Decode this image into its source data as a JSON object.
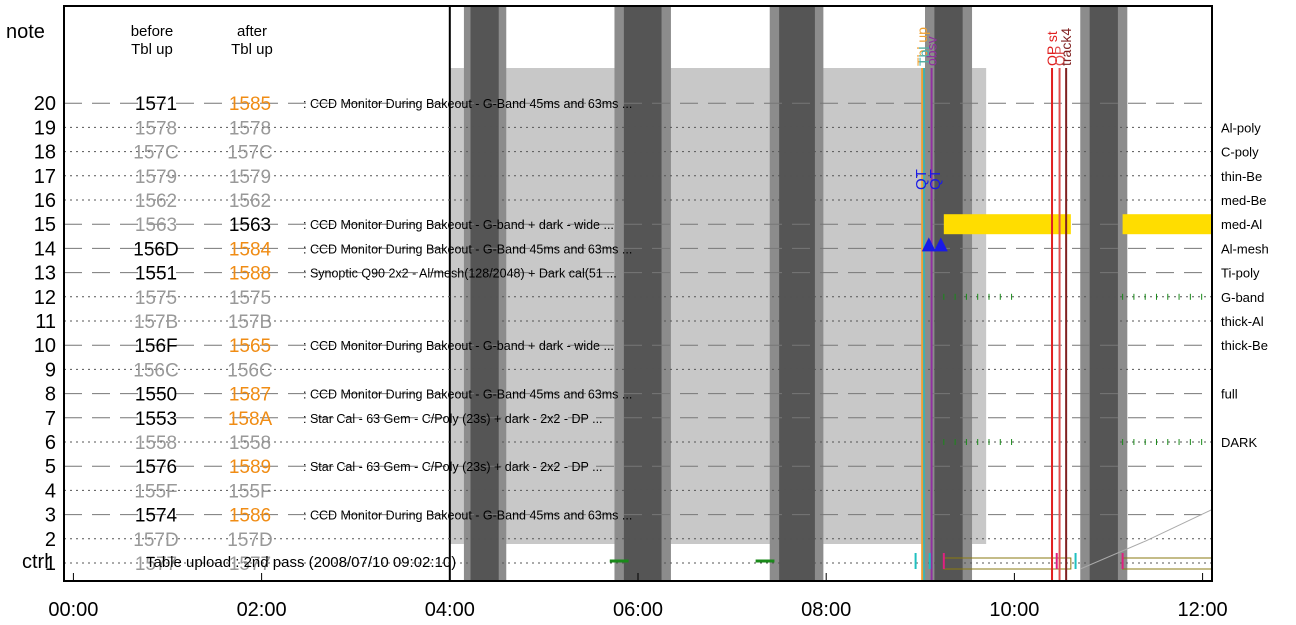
{
  "chart_data": {
    "type": "timeline",
    "x_ticks": [
      "00:00",
      "02:00",
      "04:00",
      "06:00",
      "08:00",
      "10:00",
      "12:00"
    ],
    "x_range_hours": [
      -0.1,
      12.1
    ],
    "y_labels": {
      "top": "note",
      "bottom": "ctrl",
      "rows": [
        "1",
        "2",
        "3",
        "4",
        "5",
        "6",
        "7",
        "8",
        "9",
        "10",
        "11",
        "12",
        "13",
        "14",
        "15",
        "16",
        "17",
        "18",
        "19",
        "20"
      ]
    },
    "column_headers": {
      "before_line1": "before",
      "before_line2": "Tbl up",
      "after_line1": "after",
      "after_line2": "Tbl up"
    },
    "rows": [
      {
        "row": 20,
        "before": "1571",
        "after": "1585",
        "active": true,
        "desc": ": CCD Monitor During Bakeout - G-Band 45ms and 63ms  ..."
      },
      {
        "row": 19,
        "before": "1578",
        "after": "1578",
        "active": false,
        "desc": ""
      },
      {
        "row": 18,
        "before": "157C",
        "after": "157C",
        "active": false,
        "desc": ""
      },
      {
        "row": 17,
        "before": "1579",
        "after": "1579",
        "active": false,
        "desc": ""
      },
      {
        "row": 16,
        "before": "1562",
        "after": "1562",
        "active": false,
        "desc": ""
      },
      {
        "row": 15,
        "before": "1563",
        "after": "1563",
        "active": true,
        "before_grey": true,
        "after_black": true,
        "desc": ": CCD Monitor During Bakeout - G-band + dark - wide  ..."
      },
      {
        "row": 14,
        "before": "156D",
        "after": "1584",
        "active": true,
        "desc": ": CCD Monitor During Bakeout - G-Band 45ms and 63ms  ..."
      },
      {
        "row": 13,
        "before": "1551",
        "after": "1588",
        "active": true,
        "desc": ": Synoptic Q90 2x2 - Al/mesh(128/2048) + Dark cal(51 ..."
      },
      {
        "row": 12,
        "before": "1575",
        "after": "1575",
        "active": false,
        "desc": ""
      },
      {
        "row": 11,
        "before": "157B",
        "after": "157B",
        "active": false,
        "desc": ""
      },
      {
        "row": 10,
        "before": "156F",
        "after": "1565",
        "active": true,
        "desc": ": CCD Monitor During Bakeout - G-band + dark - wide  ..."
      },
      {
        "row": 9,
        "before": "156C",
        "after": "156C",
        "active": false,
        "desc": ""
      },
      {
        "row": 8,
        "before": "1550",
        "after": "1587",
        "active": true,
        "desc": ": CCD Monitor During Bakeout - G-Band 45ms and 63ms  ..."
      },
      {
        "row": 7,
        "before": "1553",
        "after": "158A",
        "active": true,
        "desc": ": Star Cal - 63 Gem - C/Poly (23s) + dark - 2x2 - DP ..."
      },
      {
        "row": 6,
        "before": "1558",
        "after": "1558",
        "active": false,
        "desc": ""
      },
      {
        "row": 5,
        "before": "1576",
        "after": "1589",
        "active": true,
        "desc": ": Star Cal - 63 Gem - C/Poly (23s) + dark - 2x2 - DP ..."
      },
      {
        "row": 4,
        "before": "155F",
        "after": "155F",
        "active": false,
        "desc": ""
      },
      {
        "row": 3,
        "before": "1574",
        "after": "1586",
        "active": true,
        "desc": ": CCD Monitor During Bakeout - G-Band 45ms and 63ms  ..."
      },
      {
        "row": 2,
        "before": "157D",
        "after": "157D",
        "active": false,
        "desc": ""
      },
      {
        "row": 1,
        "before": "1577",
        "after": "1577",
        "active": false,
        "desc": ""
      }
    ],
    "right_labels": [
      {
        "row": 19,
        "text": "Al-poly"
      },
      {
        "row": 18,
        "text": "C-poly"
      },
      {
        "row": 17,
        "text": "thin-Be"
      },
      {
        "row": 16,
        "text": "med-Be"
      },
      {
        "row": 15,
        "text": "med-Al"
      },
      {
        "row": 14,
        "text": "Al-mesh"
      },
      {
        "row": 13,
        "text": "Ti-poly"
      },
      {
        "row": 12,
        "text": "G-band"
      },
      {
        "row": 11,
        "text": "thick-Al"
      },
      {
        "row": 10,
        "text": "thick-Be"
      },
      {
        "row": 8,
        "text": "full"
      },
      {
        "row": 6,
        "text": "DARK"
      }
    ],
    "ctrl_text": "Table upload : 2nd pass (2008/07/10 09:02:10)",
    "table_upload_time_hours": 4.0,
    "grey_region_hours": [
      4.0,
      9.7
    ],
    "night_bands": [
      {
        "outer": [
          4.15,
          4.6
        ],
        "inner": [
          4.22,
          4.52
        ]
      },
      {
        "outer": [
          5.75,
          6.35
        ],
        "inner": [
          5.85,
          6.25
        ]
      },
      {
        "outer": [
          7.4,
          7.97
        ],
        "inner": [
          7.5,
          7.88
        ]
      },
      {
        "outer": [
          9.05,
          9.55
        ],
        "inner": [
          9.15,
          9.45
        ]
      },
      {
        "outer": [
          10.7,
          11.2
        ],
        "inner": [
          10.8,
          11.1
        ]
      }
    ],
    "event_markers": [
      {
        "label": "Tbl up",
        "hour": 9.02,
        "color": "#f0a030"
      },
      {
        "label": "Tbl",
        "hour": 9.04,
        "color": "#40b0b0"
      },
      {
        "label": "obsv",
        "hour": 9.12,
        "color": "#9030a0"
      },
      {
        "label": "OP st",
        "hour": 10.4,
        "color": "#e02020"
      },
      {
        "label": "OP",
        "hour": 10.48,
        "color": "#e05050"
      },
      {
        "label": "track4",
        "hour": 10.55,
        "color": "#802020"
      }
    ],
    "qt_labels": {
      "first": "QT",
      "second": "QT"
    },
    "yellow_bar_hours": [
      [
        9.25,
        10.6
      ],
      [
        11.15,
        12.1
      ]
    ],
    "hollow_bar_hours": [
      [
        9.25,
        10.6
      ],
      [
        11.15,
        12.1
      ]
    ],
    "colors": {
      "after_changed": "#f08c14",
      "inactive": "#999999",
      "grey_region": "#c8c8c8",
      "night_outer": "#8c8c8c",
      "night_inner": "#555555",
      "yellow": "#ffdd00",
      "green": "#1a8a1a",
      "marker_blue": "#1a1ae6"
    }
  }
}
